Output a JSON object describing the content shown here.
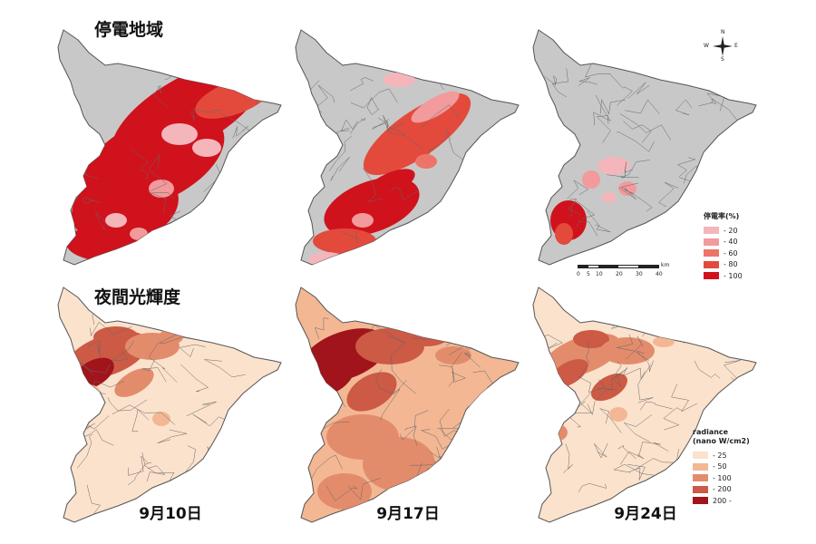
{
  "titles": {
    "outage": "停電地域",
    "nightlight": "夜間光輝度"
  },
  "dates": [
    "9月10日",
    "9月17日",
    "9月24日"
  ],
  "compass": {
    "n": "N",
    "s": "S",
    "e": "E",
    "w": "W"
  },
  "scale": {
    "unit": "km",
    "ticks": [
      "0",
      "5",
      "10",
      "20",
      "30",
      "40"
    ]
  },
  "legend_outage": {
    "title": "停電率(%)",
    "items": [
      {
        "label": "- 20",
        "color": "#f4b6bb"
      },
      {
        "label": "- 40",
        "color": "#f29a9c"
      },
      {
        "label": "- 60",
        "color": "#ee7468"
      },
      {
        "label": "- 80",
        "color": "#e34a3c"
      },
      {
        "label": "- 100",
        "color": "#d0121c"
      }
    ]
  },
  "legend_radiance": {
    "title_line1": "radiance",
    "title_line2": "(nano W/cm2)",
    "items": [
      {
        "label": "- 25",
        "color": "#fbe2cc"
      },
      {
        "label": "- 50",
        "color": "#f3b794"
      },
      {
        "label": "- 100",
        "color": "#e38c6c"
      },
      {
        "label": "- 200",
        "color": "#cc5a45"
      },
      {
        "label": "200 -",
        "color": "#a1141c"
      }
    ]
  },
  "colors": {
    "land_gray": "#c8c8c8",
    "land_light": "#fbe5d1",
    "border": "#555555"
  }
}
